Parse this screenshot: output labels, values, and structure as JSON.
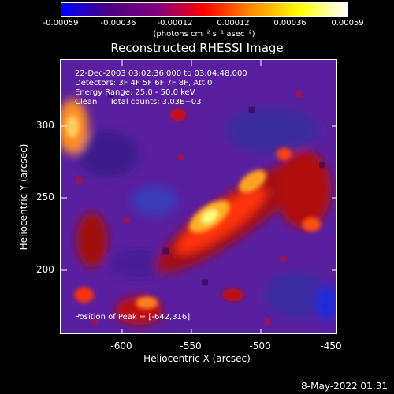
{
  "colorbar": {
    "ticks": [
      "-0.00059",
      "-0.00036",
      "-0.00012",
      "0.00012",
      "0.00036",
      "0.00059"
    ],
    "units": "(photons cm⁻² s⁻¹ asec⁻²)",
    "colors": [
      "#0000ff",
      "#4b0082",
      "#800080",
      "#ff0000",
      "#ff8c00",
      "#ffff00",
      "#ffffff"
    ]
  },
  "plot": {
    "title": "Reconstructed RHESSI Image",
    "annotations": {
      "time": "22-Dec-2003 03:02:36.000 to 03:04:48.000",
      "detectors": "Detectors: 3F 4F 5F 6F 7F 8F, Att 0",
      "energy": "Energy Range: 25.0 - 50.0 keV",
      "clean": "Clean     Total counts: 3.03E+03",
      "peak": "Position of Peak = [-642,316]"
    },
    "xlabel": "Heliocentric X (arcsec)",
    "ylabel": "Heliocentric Y (arcsec)",
    "xticks": [
      "-600",
      "-550",
      "-500",
      "-450"
    ],
    "yticks": [
      "300",
      "250",
      "200"
    ]
  },
  "footer": "8-May-2022 01:31"
}
